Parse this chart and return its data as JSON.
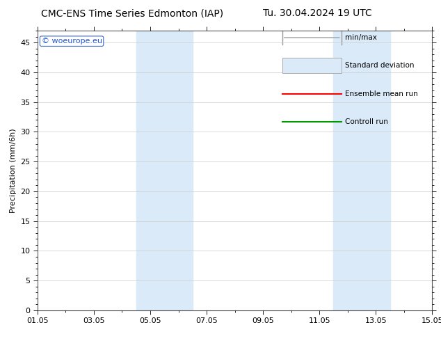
{
  "title_left": "CMC-ENS Time Series Edmonton (IAP)",
  "title_right": "Tu. 30.04.2024 19 UTC",
  "ylabel": "Precipitation (mm/6h)",
  "ylim": [
    0,
    47
  ],
  "yticks": [
    0,
    5,
    10,
    15,
    20,
    25,
    30,
    35,
    40,
    45
  ],
  "x_start_num": 0,
  "x_end_num": 14,
  "xtick_labels": [
    "01.05",
    "03.05",
    "05.05",
    "07.05",
    "09.05",
    "11.05",
    "13.05",
    "15.05"
  ],
  "xtick_positions": [
    0,
    2,
    4,
    6,
    8,
    10,
    12,
    14
  ],
  "shaded_bands": [
    {
      "xstart": 3.5,
      "xend": 5.5,
      "color": "#daeaf8"
    },
    {
      "xstart": 10.5,
      "xend": 12.5,
      "color": "#daeaf8"
    }
  ],
  "legend_labels": [
    "min/max",
    "Standard deviation",
    "Ensemble mean run",
    "Controll run"
  ],
  "watermark": "© woeurope.eu",
  "bg_color": "#ffffff",
  "title_fontsize": 10,
  "axis_fontsize": 8,
  "tick_fontsize": 8
}
